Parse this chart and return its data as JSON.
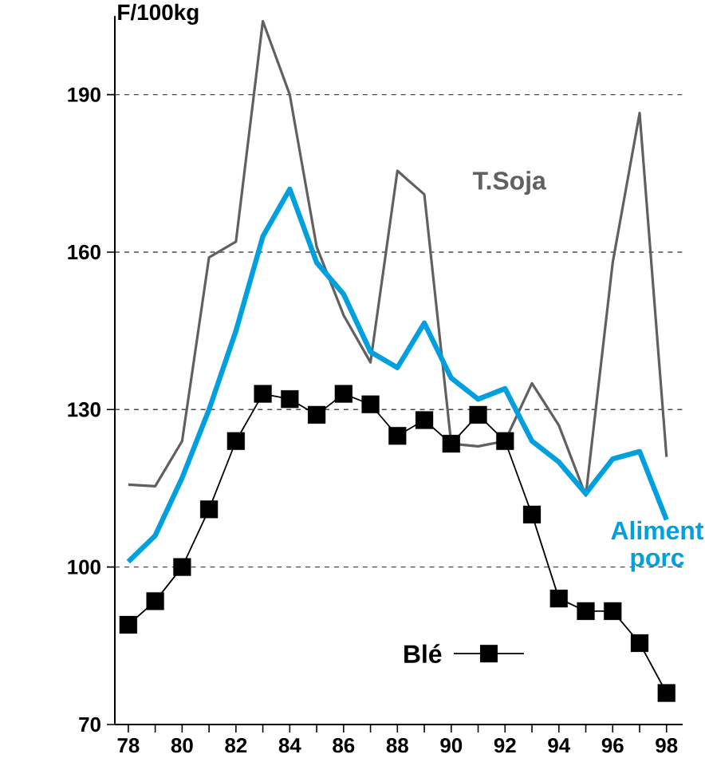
{
  "chart_data": {
    "type": "line",
    "ylabel": "F/100kg",
    "x": [
      78,
      79,
      80,
      81,
      82,
      83,
      84,
      85,
      86,
      87,
      88,
      89,
      90,
      91,
      92,
      93,
      94,
      95,
      96,
      97,
      98
    ],
    "series": [
      {
        "name": "T.Soja",
        "color": "#606060",
        "marker": "none",
        "values": [
          115.7,
          115.4,
          124,
          159,
          162,
          204,
          190,
          161,
          148,
          139,
          175.5,
          171,
          123.5,
          123,
          124,
          135,
          127,
          113.6,
          158,
          186.5,
          121
        ]
      },
      {
        "name": "Aliment porc",
        "color": "#00a0e0",
        "marker": "none",
        "values": [
          101,
          106,
          117,
          130,
          145,
          163,
          172,
          158,
          152,
          141,
          138,
          146.5,
          136,
          132,
          134,
          124,
          120,
          114,
          120.6,
          122,
          109
        ]
      },
      {
        "name": "Blé",
        "color": "#000000",
        "marker": "square",
        "values": [
          89,
          93.5,
          100,
          111,
          124,
          133,
          132,
          129,
          133,
          131,
          125,
          128,
          123.5,
          129,
          124,
          110,
          94,
          91.6,
          91.6,
          85.5,
          76
        ]
      }
    ],
    "xlim": [
      77.5,
      98.6
    ],
    "ylim": [
      70,
      205
    ],
    "xticks": [
      78,
      {
        "value": 79,
        "label": null
      },
      80,
      {
        "value": 81,
        "label": null
      },
      82,
      {
        "value": 83,
        "label": null
      },
      84,
      {
        "value": 85,
        "label": null
      },
      86,
      {
        "value": 87,
        "label": null
      },
      88,
      {
        "value": 89,
        "label": null
      },
      90,
      {
        "value": 91,
        "label": null
      },
      92,
      {
        "value": 93,
        "label": null
      },
      94,
      {
        "value": 95,
        "label": null
      },
      96,
      {
        "value": 97,
        "label": null
      },
      98
    ],
    "yticks": [
      70,
      100,
      130,
      160,
      190
    ],
    "grid": "y",
    "line_style": "solid"
  }
}
